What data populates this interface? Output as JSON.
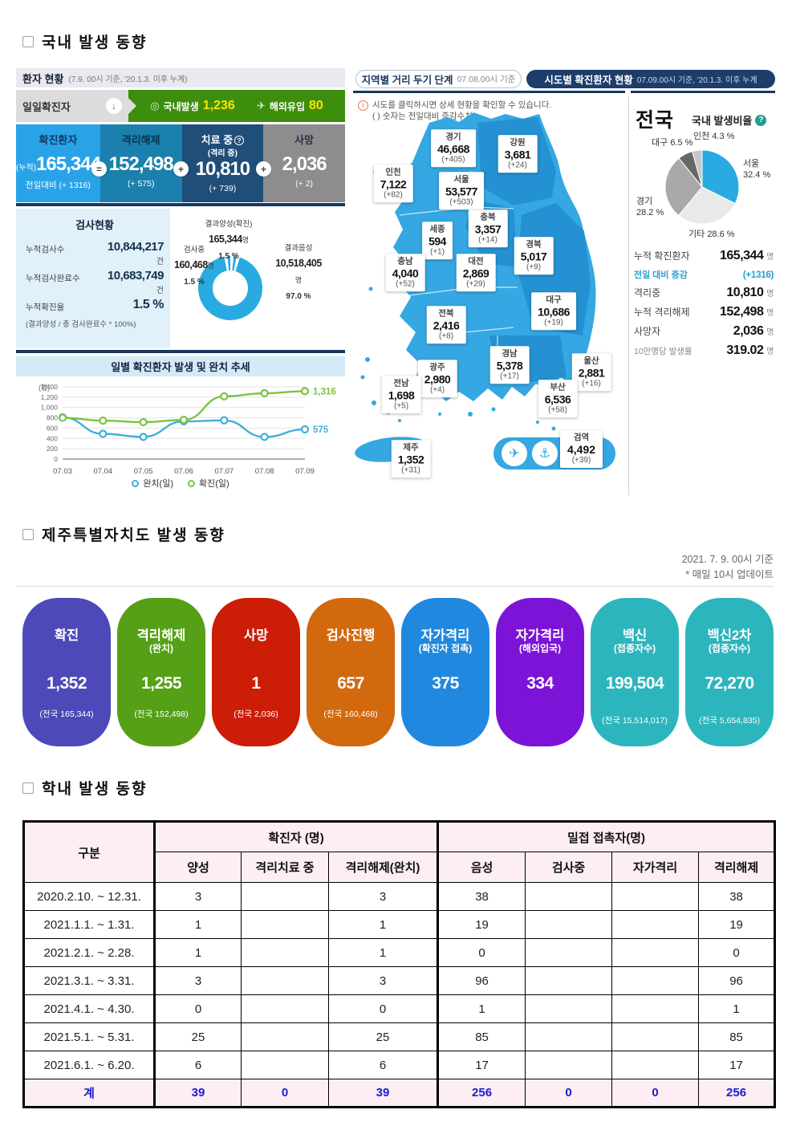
{
  "page": {
    "section1_title": "국내 발생 동향",
    "section2_title": "제주특별자치도 발생 동향",
    "section3_title": "학내 발생 동향"
  },
  "patient_status": {
    "title": "환자 현황",
    "title_note": "(7.9. 00시 기준, '20.1.3. 이후 누계)",
    "daily_label": "일일확진자",
    "down_arrow_icon": "↓",
    "domestic_label": "국내발생",
    "domestic_value": "1,236",
    "overseas_label": "해외유입",
    "overseas_value": "80",
    "accent_yellow": "#ffe400",
    "bar_green": "#3e8e0e",
    "boxes": [
      {
        "label": "확진환자",
        "sub": "",
        "prefix": "(누적)",
        "value": "165,344",
        "delta": "전일대비 (+ 1316)",
        "color": "#29a3e8"
      },
      {
        "label": "격리해제",
        "sub": "",
        "prefix": "",
        "value": "152,498",
        "delta": "(+ 575)",
        "color": "#1b80ad"
      },
      {
        "label": "치료 중",
        "sub": "(격리 중)",
        "prefix": "",
        "value": "10,810",
        "delta": "(+ 739)",
        "color": "#1f4e79"
      },
      {
        "label": "사망",
        "sub": "",
        "prefix": "",
        "value": "2,036",
        "delta": "(+ 2)",
        "color": "#8d8d8d"
      }
    ],
    "operators": [
      "=",
      "+",
      "+"
    ]
  },
  "test_status": {
    "title": "검사현황",
    "rows": [
      {
        "label": "누적검사수",
        "value": "10,844,217",
        "unit": "건"
      },
      {
        "label": "누적검사완료수",
        "value": "10,683,749",
        "unit": "건"
      },
      {
        "label": "누적확진율",
        "value": "1.5 %",
        "unit": ""
      }
    ],
    "note": "(결과양성 / 총 검사완료수 * 100%)",
    "donut": {
      "positive_label": "결과양성(확진)",
      "positive_value": "165,344",
      "positive_unit": "명",
      "positive_pct": "1.5 %",
      "testing_label": "검사중",
      "testing_value": "160,468",
      "testing_unit": "명",
      "testing_pct": "1.5 %",
      "negative_label": "결과음성",
      "negative_value": "10,518,405",
      "negative_unit": "명",
      "negative_pct": "97.0 %"
    }
  },
  "trend": {
    "title": "일별 확진환자 발생 및 완치 추세",
    "unit_label": "(명)"
  },
  "map": {
    "tab1_label": "지역별 거리 두기 단계",
    "tab1_date": "07.08.00시 기준",
    "tab2_label": "시도별 확진환자 현황",
    "tab2_date": "07.09.00시 기준, '20.1.3. 이후 누계",
    "info1": "시도를 클릭하시면 상세 현황을 확인할 수 있습니다.",
    "info2": "( ) 숫자는 전일대비 증감수치",
    "sea_blue": "#35a7e2",
    "regions": [
      {
        "name": "경기",
        "value": "46,668",
        "delta": "(+405)"
      },
      {
        "name": "강원",
        "value": "3,681",
        "delta": "(+24)"
      },
      {
        "name": "인천",
        "value": "7,122",
        "delta": "(+82)"
      },
      {
        "name": "서울",
        "value": "53,577",
        "delta": "(+503)"
      },
      {
        "name": "충북",
        "value": "3,357",
        "delta": "(+14)"
      },
      {
        "name": "세종",
        "value": "594",
        "delta": "(+1)"
      },
      {
        "name": "경북",
        "value": "5,017",
        "delta": "(+9)"
      },
      {
        "name": "충남",
        "value": "4,040",
        "delta": "(+52)"
      },
      {
        "name": "대전",
        "value": "2,869",
        "delta": "(+29)"
      },
      {
        "name": "대구",
        "value": "10,686",
        "delta": "(+19)"
      },
      {
        "name": "전북",
        "value": "2,416",
        "delta": "(+8)"
      },
      {
        "name": "경남",
        "value": "5,378",
        "delta": "(+17)"
      },
      {
        "name": "울산",
        "value": "2,881",
        "delta": "(+16)"
      },
      {
        "name": "광주",
        "value": "2,980",
        "delta": "(+4)"
      },
      {
        "name": "전남",
        "value": "1,698",
        "delta": "(+5)"
      },
      {
        "name": "부산",
        "value": "6,536",
        "delta": "(+58)"
      },
      {
        "name": "제주",
        "value": "1,352",
        "delta": "(+31)"
      }
    ],
    "quarantine": {
      "name": "검역",
      "value": "4,492",
      "delta": "(+39)",
      "plane_icon": "✈",
      "ship_icon": "⚓"
    }
  },
  "national": {
    "title": "전국",
    "ratio_label": "국내 발생비율",
    "stats": [
      {
        "label": "누적 확진환자",
        "value": "165,344",
        "unit": "명"
      },
      {
        "label": "전일 대비 증감",
        "value": "(+1316)",
        "unit": ""
      },
      {
        "label": "격리중",
        "value": "10,810",
        "unit": "명"
      },
      {
        "label": "누적 격리해제",
        "value": "152,498",
        "unit": "명"
      },
      {
        "label": "사망자",
        "value": "2,036",
        "unit": "명"
      },
      {
        "label": "10만명당 발생률",
        "value": "319.02",
        "unit": "명"
      }
    ]
  },
  "jeju": {
    "date_line1": "2021. 7. 9. 00시 기준",
    "date_line2": "* 매일 10시 업데이트",
    "cards": [
      {
        "title": "확진",
        "subtitle": "",
        "value": "1,352",
        "note": "(전국 165,344)",
        "color": "#4e49b8"
      },
      {
        "title": "격리해제",
        "subtitle": "(완치)",
        "value": "1,255",
        "note": "(전국 152,498)",
        "color": "#55a017"
      },
      {
        "title": "사망",
        "subtitle": "",
        "value": "1",
        "note": "(전국 2,036)",
        "color": "#cc1d07"
      },
      {
        "title": "검사진행",
        "subtitle": "",
        "value": "657",
        "note": "(전국 160,468)",
        "color": "#d2690f"
      },
      {
        "title": "자가격리",
        "subtitle": "(확진자 접촉)",
        "value": "375",
        "note": "",
        "color": "#2188e0"
      },
      {
        "title": "자가격리",
        "subtitle": "(해외입국)",
        "value": "334",
        "note": "",
        "color": "#7c14d8"
      },
      {
        "title": "백신",
        "subtitle": "(접종자수)",
        "value": "199,504",
        "note": "(전국 15,514,017)",
        "color": "#2cb5bc"
      },
      {
        "title": "백신2차",
        "subtitle": "(접종자수)",
        "value": "72,270",
        "note": "(전국 5,654,835)",
        "color": "#2cb5bc"
      }
    ]
  },
  "school_table": {
    "col1_header": "구분",
    "group1_header": "확진자 (명)",
    "group2_header": "밀접 접촉자(명)",
    "sub_headers": [
      "양성",
      "격리치료 중",
      "격리해제(완치)",
      "음성",
      "검사중",
      "자가격리",
      "격리해제"
    ],
    "rows": [
      {
        "period": "2020.2.10.  ~ 12.31.",
        "cells": [
          "3",
          "",
          "3",
          "38",
          "",
          "",
          "38"
        ]
      },
      {
        "period": "2021.1.1.  ~  1.31.",
        "cells": [
          "1",
          "",
          "1",
          "19",
          "",
          "",
          "19"
        ]
      },
      {
        "period": "2021.2.1.  ~  2.28.",
        "cells": [
          "1",
          "",
          "1",
          "0",
          "",
          "",
          "0"
        ]
      },
      {
        "period": "2021.3.1.  ~  3.31.",
        "cells": [
          "3",
          "",
          "3",
          "96",
          "",
          "",
          "96"
        ]
      },
      {
        "period": "2021.4.1.  ~  4.30.",
        "cells": [
          "0",
          "",
          "0",
          "1",
          "",
          "",
          "1"
        ]
      },
      {
        "period": "2021.5.1.  ~  5.31.",
        "cells": [
          "25",
          "",
          "25",
          "85",
          "",
          "",
          "85"
        ]
      },
      {
        "period": "2021.6.1.  ~  6.20.",
        "cells": [
          "6",
          "",
          "6",
          "17",
          "",
          "",
          "17"
        ]
      }
    ],
    "total_row": {
      "period": "계",
      "cells": [
        "39",
        "0",
        "39",
        "256",
        "0",
        "0",
        "256"
      ]
    }
  },
  "chart_data": [
    {
      "type": "pie",
      "title": "검사현황 결과 분포 (도넛)",
      "labels": [
        "결과양성(확진)",
        "검사중",
        "결과음성"
      ],
      "values": [
        1.5,
        1.5,
        97.0
      ],
      "counts": [
        165344,
        160468,
        10518405
      ],
      "colors": [
        "#29abe2",
        "#29abe2",
        "#29abe2"
      ],
      "inner_radius_ratio": 0.55
    },
    {
      "type": "line",
      "title": "일별 확진환자 발생 및 완치 추세",
      "ylabel": "(명)",
      "ylim": [
        0,
        1400
      ],
      "yticks": [
        0,
        200,
        400,
        600,
        800,
        1000,
        1200,
        1400
      ],
      "x": [
        "07.03",
        "07.04",
        "07.05",
        "07.06",
        "07.07",
        "07.08",
        "07.09"
      ],
      "series": [
        {
          "name": "완치(일)",
          "color": "#3eb0dc",
          "values": [
            810,
            490,
            430,
            730,
            750,
            430,
            575
          ]
        },
        {
          "name": "확진(일)",
          "color": "#7dc242",
          "values": [
            800,
            745,
            715,
            760,
            1215,
            1275,
            1316
          ]
        }
      ],
      "end_labels": [
        "575",
        "1,316"
      ],
      "grid": true,
      "legend_position": "bottom"
    },
    {
      "type": "pie",
      "title": "국내 발생비율",
      "labels": [
        "서울",
        "기타",
        "경기",
        "대구",
        "인천"
      ],
      "values": [
        32.4,
        28.6,
        28.2,
        6.5,
        4.3
      ],
      "pct_labels": [
        "32.4 %",
        "28.6 %",
        "28.2 %",
        "6.5 %",
        "4.3 %"
      ],
      "colors": [
        "#29abe2",
        "#e9e9e9",
        "#a9a9a9",
        "#686868",
        "#c8c8c8"
      ]
    }
  ]
}
